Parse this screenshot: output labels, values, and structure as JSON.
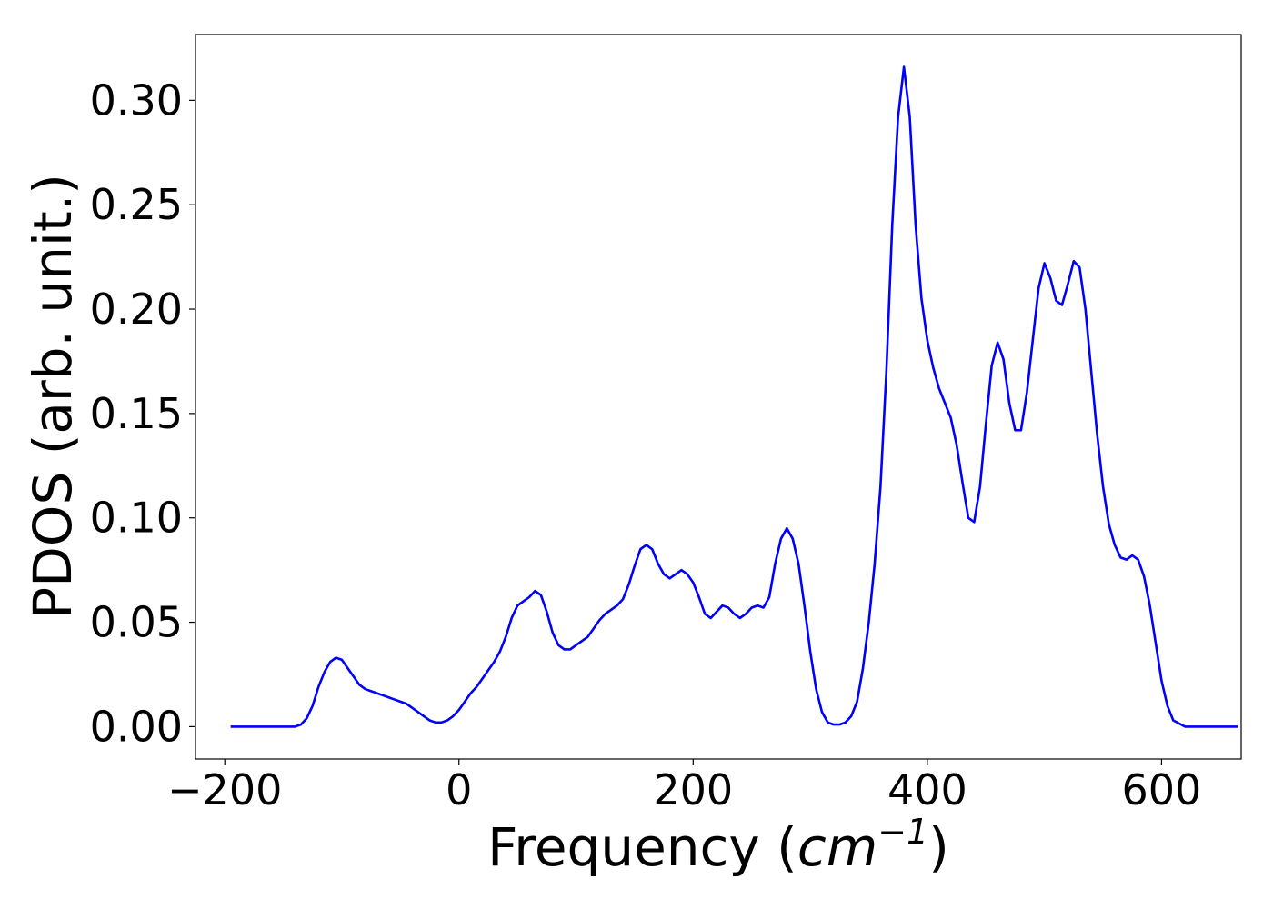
{
  "chart_data": {
    "type": "line",
    "title": "",
    "xlabel": {
      "prefix": "Frequency (",
      "math_base": "cm",
      "math_superscript": "−1",
      "suffix": ")"
    },
    "ylabel": "PDOS (arb. unit.)",
    "xlim": [
      -225,
      668
    ],
    "ylim": [
      -0.0155,
      0.3315
    ],
    "x_ticks": [
      -200,
      0,
      200,
      400,
      600
    ],
    "x_tick_labels": [
      "−200",
      "0",
      "200",
      "400",
      "600"
    ],
    "y_ticks": [
      0.0,
      0.05,
      0.1,
      0.15,
      0.2,
      0.25,
      0.3
    ],
    "y_tick_labels": [
      "0.00",
      "0.05",
      "0.10",
      "0.15",
      "0.20",
      "0.25",
      "0.30"
    ],
    "grid": false,
    "legend": "none",
    "series": [
      {
        "color": "#0000ff",
        "x": [
          -195,
          -140,
          -135,
          -130,
          -125,
          -120,
          -115,
          -110,
          -105,
          -100,
          -95,
          -90,
          -85,
          -80,
          -75,
          -70,
          -65,
          -60,
          -55,
          -50,
          -45,
          -40,
          -35,
          -30,
          -25,
          -20,
          -15,
          -10,
          -5,
          0,
          5,
          10,
          15,
          20,
          25,
          30,
          35,
          40,
          45,
          50,
          55,
          60,
          65,
          70,
          75,
          80,
          85,
          90,
          95,
          100,
          105,
          110,
          115,
          120,
          125,
          130,
          135,
          140,
          145,
          150,
          155,
          160,
          165,
          170,
          175,
          180,
          185,
          190,
          195,
          200,
          205,
          210,
          215,
          220,
          225,
          230,
          235,
          240,
          245,
          250,
          255,
          260,
          265,
          270,
          275,
          280,
          285,
          290,
          295,
          300,
          305,
          310,
          315,
          320,
          325,
          330,
          335,
          340,
          345,
          350,
          355,
          360,
          365,
          370,
          375,
          380,
          385,
          390,
          395,
          400,
          405,
          410,
          415,
          420,
          425,
          430,
          435,
          440,
          445,
          450,
          455,
          460,
          465,
          470,
          475,
          480,
          485,
          490,
          495,
          500,
          505,
          510,
          515,
          520,
          525,
          530,
          535,
          540,
          545,
          550,
          555,
          560,
          565,
          570,
          575,
          580,
          585,
          590,
          595,
          600,
          605,
          610,
          620,
          665
        ],
        "y": [
          0.0,
          0.0,
          0.001,
          0.004,
          0.01,
          0.019,
          0.026,
          0.031,
          0.033,
          0.032,
          0.028,
          0.024,
          0.02,
          0.018,
          0.017,
          0.016,
          0.015,
          0.014,
          0.013,
          0.012,
          0.011,
          0.009,
          0.007,
          0.005,
          0.003,
          0.002,
          0.002,
          0.003,
          0.005,
          0.008,
          0.012,
          0.016,
          0.019,
          0.023,
          0.027,
          0.031,
          0.036,
          0.043,
          0.052,
          0.058,
          0.06,
          0.062,
          0.065,
          0.063,
          0.055,
          0.045,
          0.039,
          0.037,
          0.037,
          0.039,
          0.041,
          0.043,
          0.047,
          0.051,
          0.054,
          0.056,
          0.058,
          0.061,
          0.068,
          0.077,
          0.085,
          0.087,
          0.085,
          0.078,
          0.073,
          0.071,
          0.073,
          0.075,
          0.073,
          0.069,
          0.062,
          0.054,
          0.052,
          0.055,
          0.058,
          0.057,
          0.054,
          0.052,
          0.054,
          0.057,
          0.058,
          0.057,
          0.062,
          0.078,
          0.09,
          0.095,
          0.09,
          0.078,
          0.058,
          0.036,
          0.018,
          0.007,
          0.002,
          0.001,
          0.001,
          0.002,
          0.005,
          0.012,
          0.028,
          0.05,
          0.078,
          0.115,
          0.17,
          0.24,
          0.292,
          0.316,
          0.292,
          0.24,
          0.205,
          0.185,
          0.172,
          0.162,
          0.155,
          0.148,
          0.135,
          0.117,
          0.1,
          0.098,
          0.115,
          0.145,
          0.173,
          0.184,
          0.176,
          0.155,
          0.142,
          0.142,
          0.16,
          0.185,
          0.21,
          0.222,
          0.215,
          0.204,
          0.202,
          0.212,
          0.223,
          0.22,
          0.2,
          0.17,
          0.14,
          0.115,
          0.097,
          0.087,
          0.081,
          0.08,
          0.082,
          0.08,
          0.072,
          0.058,
          0.04,
          0.022,
          0.01,
          0.003,
          0.0,
          0.0
        ]
      }
    ]
  }
}
